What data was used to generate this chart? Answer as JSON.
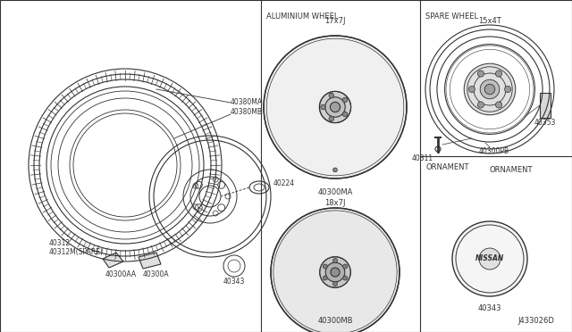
{
  "bg_color": "#ffffff",
  "line_color": "#333333",
  "diagram_code": "J433026D",
  "dividers": {
    "v1x": 0.46,
    "v2x": 0.735,
    "hy": 0.47
  },
  "labels": {
    "aluminium_wheel": "ALUMINIUM WHEEL",
    "spare_wheel": "SPARE WHEEL",
    "ornament": "ORNAMENT",
    "w17": "17x7J",
    "w18": "18x7J",
    "spare_size": "15x4T",
    "part_40300MA": "40300MA",
    "part_40300MB": "40300MB",
    "part_40300PB": "40300PB",
    "part_40311": "40311",
    "part_40353": "40353",
    "part_40343_orn": "40343",
    "part_40343_left": "40343",
    "part_40224": "40224",
    "part_40300A": "40300A",
    "part_40300AA": "40300AA",
    "part_40380": "40380MA\n40380MB",
    "part_40312": "40312\n40312M(SPARE)",
    "nissan": "NISSAN"
  }
}
